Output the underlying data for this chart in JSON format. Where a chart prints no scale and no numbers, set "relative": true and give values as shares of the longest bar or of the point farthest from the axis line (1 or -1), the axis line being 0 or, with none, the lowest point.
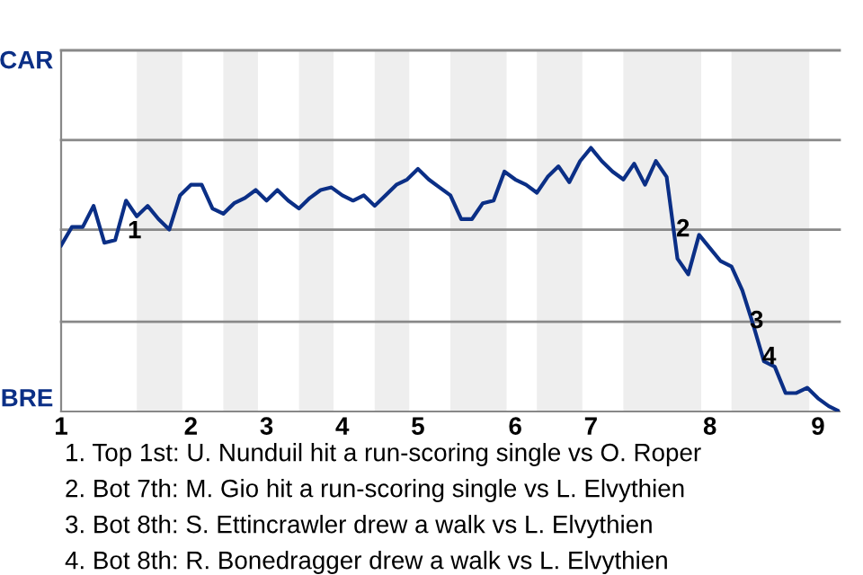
{
  "chart_data": {
    "type": "line",
    "relative": true,
    "categories": [
      "1",
      null,
      null,
      null,
      null,
      null,
      null,
      null,
      null,
      null,
      null,
      null,
      "2",
      null,
      null,
      null,
      null,
      null,
      null,
      "3",
      null,
      null,
      null,
      null,
      null,
      null,
      "4",
      null,
      null,
      null,
      null,
      null,
      null,
      "5",
      null,
      null,
      null,
      null,
      null,
      null,
      null,
      null,
      "6",
      null,
      null,
      null,
      null,
      null,
      null,
      "7",
      null,
      null,
      null,
      null,
      null,
      null,
      null,
      null,
      null,
      null,
      "8",
      null,
      null,
      null,
      null,
      null,
      null,
      null,
      null,
      null,
      "9",
      null,
      null
    ],
    "series": [
      {
        "color": "#0b2f86",
        "values": [
          0.63,
          0.7,
          0.7,
          0.78,
          0.64,
          0.65,
          0.8,
          0.74,
          0.78,
          0.73,
          0.69,
          0.82,
          0.86,
          0.86,
          0.77,
          0.75,
          0.79,
          0.81,
          0.84,
          0.8,
          0.84,
          0.8,
          0.77,
          0.81,
          0.84,
          0.85,
          0.82,
          0.8,
          0.82,
          0.78,
          0.82,
          0.86,
          0.88,
          0.92,
          0.88,
          0.85,
          0.82,
          0.73,
          0.73,
          0.79,
          0.8,
          0.91,
          0.88,
          0.86,
          0.83,
          0.89,
          0.93,
          0.87,
          0.95,
          1,
          0.95,
          0.91,
          0.88,
          0.94,
          0.86,
          0.95,
          0.89,
          0.58,
          0.52,
          0.67,
          0.62,
          0.57,
          0.55,
          0.46,
          0.33,
          0.19,
          0.17,
          0.07,
          0.07,
          0.09,
          0.05,
          0.02,
          0
        ]
      }
    ],
    "ref_lines": [
      {
        "axis": "y",
        "value": 0.34,
        "color": "#888888"
      },
      {
        "axis": "y",
        "value": 0.69,
        "color": "#888888"
      },
      {
        "axis": "y",
        "value": 1.03,
        "color": "#888888"
      },
      {
        "axis": "y",
        "value": 1.37,
        "color": "#888888"
      }
    ],
    "annotations": [
      "CAR",
      "BRE",
      "1",
      "2",
      "3",
      "4",
      "1. Top 1st: U. Nunduil hit a run-scoring single vs O. Roper",
      "2. Bot 7th: M. Gio hit a run-scoring single vs L. Elvythien",
      "3. Bot 8th: S. Ettincrawler drew a walk vs L. Elvythien",
      "4. Bot 8th: R. Bonedragger drew a walk vs L. Elvythien"
    ]
  }
}
